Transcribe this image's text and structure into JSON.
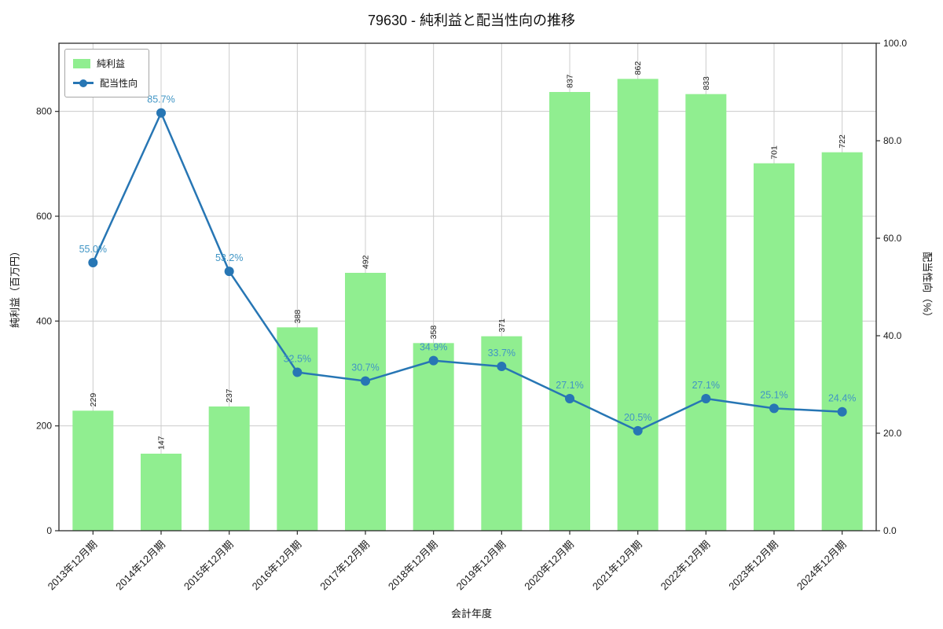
{
  "chart_data": {
    "type": "bar+line",
    "title": "79630 - 純利益と配当性向の推移",
    "xlabel": "会計年度",
    "ylabel_left": "純利益（百万円）",
    "ylabel_right": "配当性向（%）",
    "categories": [
      "2013年12月期",
      "2014年12月期",
      "2015年12月期",
      "2016年12月期",
      "2017年12月期",
      "2018年12月期",
      "2019年12月期",
      "2020年12月期",
      "2021年12月期",
      "2022年12月期",
      "2023年12月期",
      "2024年12月期"
    ],
    "series": [
      {
        "name": "純利益",
        "type": "bar",
        "axis": "left",
        "color": "#90ee90",
        "values": [
          229,
          147,
          237,
          388,
          492,
          358,
          371,
          837,
          862,
          833,
          701,
          722
        ]
      },
      {
        "name": "配当性向",
        "type": "line",
        "axis": "right",
        "color": "#2776b4",
        "values": [
          55.0,
          85.7,
          53.2,
          32.5,
          30.7,
          34.9,
          33.7,
          27.1,
          20.5,
          27.1,
          25.1,
          24.4
        ]
      }
    ],
    "bar_labels": [
      "229",
      "147",
      "237",
      "388",
      "492",
      "358",
      "371",
      "837",
      "862",
      "833",
      "701",
      "722"
    ],
    "line_labels": [
      "55.0%",
      "85.7%",
      "53.2%",
      "32.5%",
      "30.7%",
      "34.9%",
      "33.7%",
      "27.1%",
      "20.5%",
      "27.1%",
      "25.1%",
      "24.4%"
    ],
    "ylim_left": [
      0,
      930
    ],
    "yticks_left": [
      "0",
      "200",
      "400",
      "600",
      "800"
    ],
    "ylim_right": [
      0,
      100
    ],
    "yticks_right": [
      "0.0",
      "20.0",
      "40.0",
      "60.0",
      "80.0",
      "100.0"
    ],
    "grid": true,
    "grid_color": "#cccccc",
    "bar_label_color": "#1a1a1a",
    "line_label_color": "#4095c5",
    "legend_position": "upper left"
  }
}
